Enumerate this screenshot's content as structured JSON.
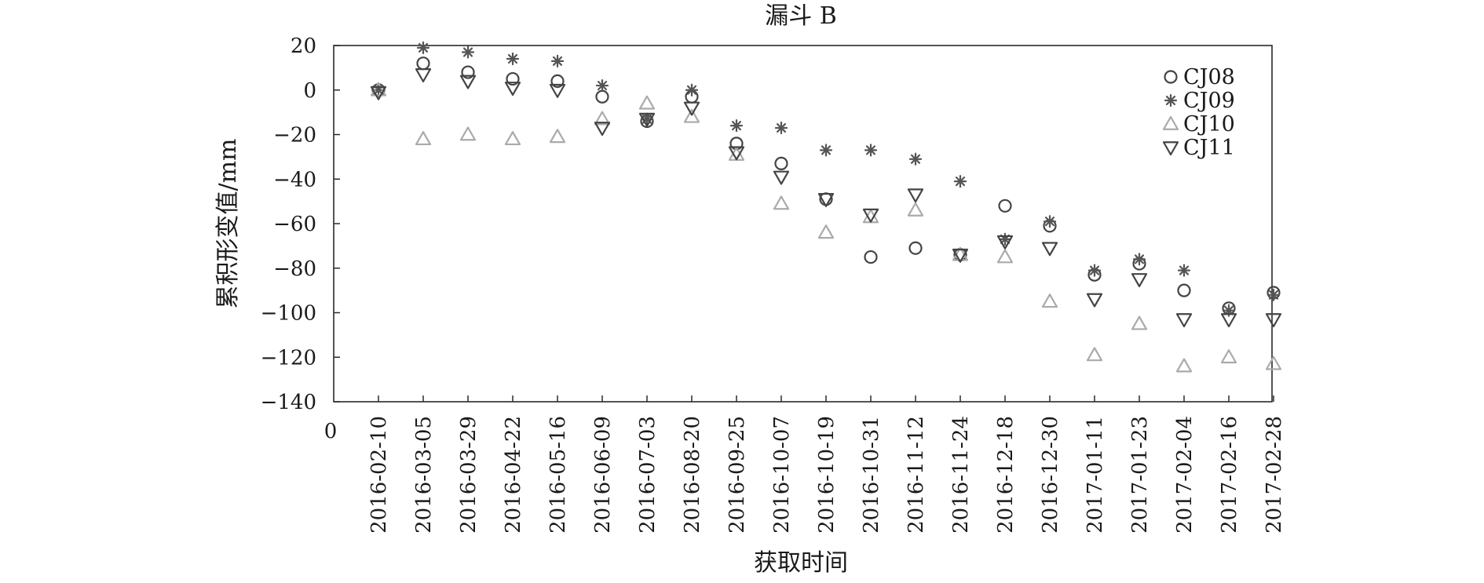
{
  "chart_data": {
    "type": "scatter",
    "title": "漏斗 B",
    "xlabel": "获取时间",
    "ylabel": "累积形变值/mm",
    "origin_label": "0",
    "ylim": [
      -140,
      20
    ],
    "yticks": [
      20,
      0,
      -20,
      -40,
      -60,
      -80,
      -100,
      -120,
      -140
    ],
    "grid": false,
    "legend_position": "top-right",
    "categories": [
      "2016-02-10",
      "2016-03-05",
      "2016-03-29",
      "2016-04-22",
      "2016-05-16",
      "2016-06-09",
      "2016-07-03",
      "2016-08-20",
      "2016-09-25",
      "2016-10-07",
      "2016-10-19",
      "2016-10-31",
      "2016-11-12",
      "2016-11-24",
      "2016-12-18",
      "2016-12-30",
      "2017-01-11",
      "2017-01-23",
      "2017-02-04",
      "2017-02-16",
      "2017-02-28"
    ],
    "series": [
      {
        "name": "CJ08",
        "marker": "circle",
        "color": "#444444",
        "values": [
          0,
          12,
          8,
          5,
          4,
          -3,
          -14,
          -3,
          -24,
          -33,
          -49,
          -75,
          -71,
          -74,
          -52,
          -61,
          -83,
          -78,
          -90,
          -98,
          -91
        ]
      },
      {
        "name": "CJ09",
        "marker": "asterisk",
        "color": "#555555",
        "values": [
          0,
          19,
          17,
          14,
          13,
          2,
          -13,
          0,
          -16,
          -17,
          -27,
          -27,
          -31,
          -41,
          -67,
          -59,
          -81,
          -76,
          -81,
          -99,
          -92
        ]
      },
      {
        "name": "CJ10",
        "marker": "triangle-up",
        "color": "#aaaaaa",
        "values": [
          0,
          -22,
          -20,
          -22,
          -21,
          -13,
          -6,
          -12,
          -29,
          -51,
          -64,
          -57,
          -54,
          -74,
          -75,
          -95,
          -119,
          -105,
          -124,
          -120,
          -123
        ]
      },
      {
        "name": "CJ11",
        "marker": "triangle-down",
        "color": "#444444",
        "values": [
          -1,
          7,
          4,
          1,
          0,
          -17,
          -13,
          -8,
          -28,
          -39,
          -49,
          -56,
          -47,
          -74,
          -68,
          -71,
          -94,
          -85,
          -103,
          -103,
          -103
        ]
      }
    ]
  }
}
